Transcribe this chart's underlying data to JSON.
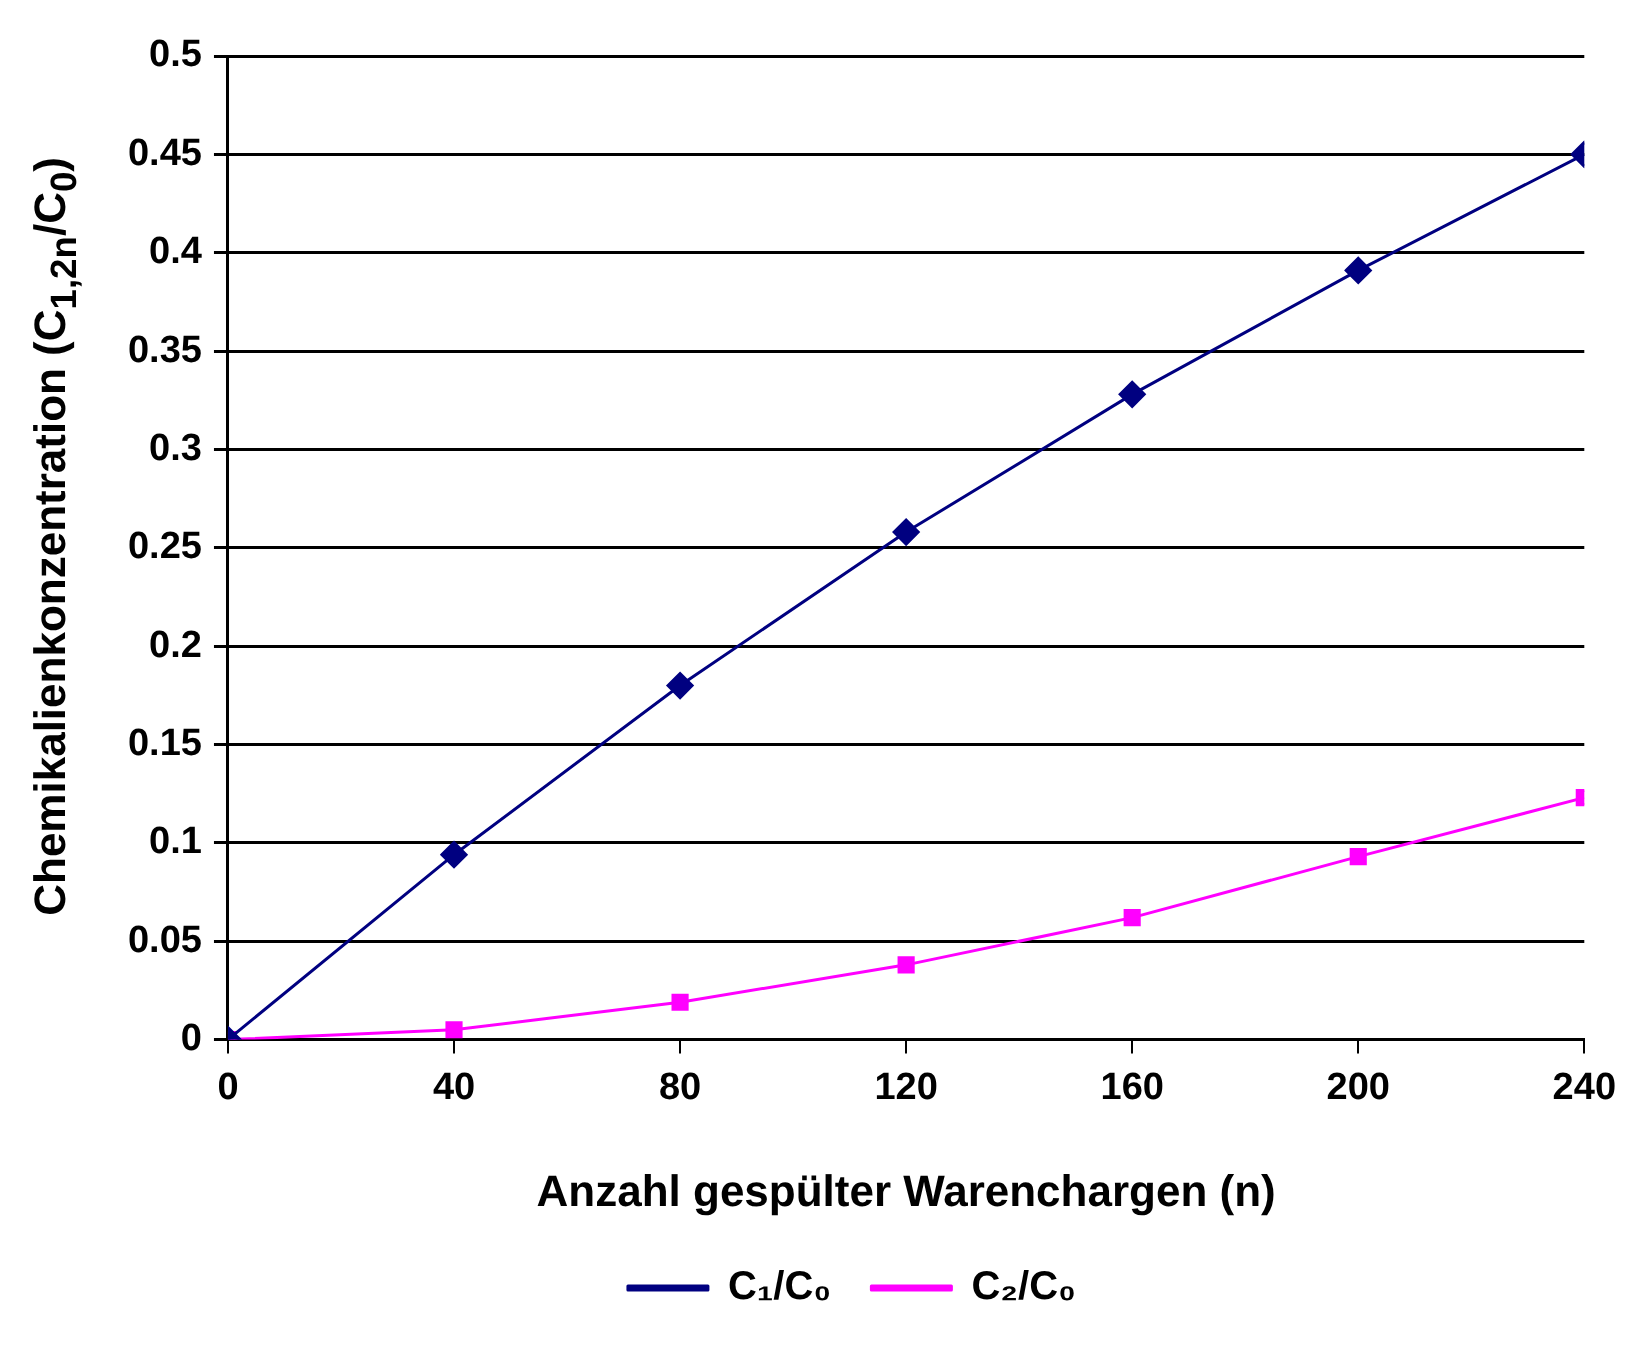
{
  "chart_data": {
    "type": "line",
    "xlabel": "Anzahl gespülter Warenchargen (n)",
    "ylabel": "Chemikalienkonzentration (C$_{1,2n}$/C$_{0}$)",
    "x": [
      0,
      40,
      80,
      120,
      160,
      200,
      240
    ],
    "series": [
      {
        "name": "C₁/C₀",
        "color": "#000080",
        "marker": "diamond",
        "values": [
          0,
          0.094,
          0.18,
          0.258,
          0.328,
          0.391,
          0.45
        ]
      },
      {
        "name": "C₂/C₀",
        "color": "#ff00ff",
        "marker": "square",
        "values": [
          0,
          0.005,
          0.019,
          0.038,
          0.062,
          0.093,
          0.123
        ]
      }
    ],
    "xlim": [
      0,
      240
    ],
    "xticks": [
      0,
      40,
      80,
      120,
      160,
      200,
      240
    ],
    "ylim": [
      0,
      0.5
    ],
    "yticks": [
      0,
      0.05,
      0.1,
      0.15,
      0.2,
      0.25,
      0.3,
      0.35,
      0.4,
      0.45,
      0.5
    ],
    "grid": "y",
    "legend": "bottom",
    "line_style": "solid"
  }
}
